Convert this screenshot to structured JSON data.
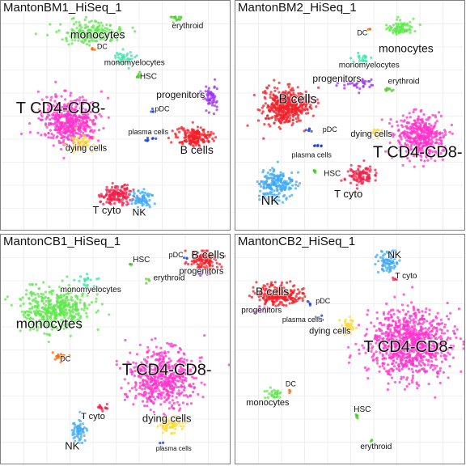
{
  "chart_data": [
    {
      "type": "scatter",
      "title": "MantonBM1_HiSeq_1",
      "clusters": [
        {
          "name": "T CD4-CD8-",
          "color": "#ff33cc",
          "center": [
            0.3,
            0.52
          ],
          "spread": [
            0.11,
            0.09
          ],
          "n": 520,
          "label_at": [
            0.26,
            0.47
          ],
          "label_size": 20
        },
        {
          "name": "dying cells",
          "color": "#ffd92f",
          "center": [
            0.34,
            0.62
          ],
          "spread": [
            0.05,
            0.03
          ],
          "n": 60,
          "label_at": [
            0.37,
            0.64
          ],
          "label_size": 11
        },
        {
          "name": "B cells",
          "color": "#f0202a",
          "center": [
            0.84,
            0.59
          ],
          "spread": [
            0.07,
            0.04
          ],
          "n": 180,
          "label_at": [
            0.85,
            0.65
          ],
          "label_size": 14
        },
        {
          "name": "T cyto",
          "color": "#f0204a",
          "center": [
            0.5,
            0.84
          ],
          "spread": [
            0.06,
            0.04
          ],
          "n": 150,
          "label_at": [
            0.46,
            0.91
          ],
          "label_size": 13
        },
        {
          "name": "NK",
          "color": "#3fa9f5",
          "center": [
            0.61,
            0.86
          ],
          "spread": [
            0.04,
            0.03
          ],
          "n": 70,
          "label_at": [
            0.6,
            0.92
          ],
          "label_size": 12
        },
        {
          "name": "monocytes",
          "color": "#5ee84a",
          "center": [
            0.4,
            0.14
          ],
          "spread": [
            0.12,
            0.04
          ],
          "n": 200,
          "label_at": [
            0.42,
            0.15
          ],
          "label_size": 14
        },
        {
          "name": "erythroid",
          "color": "#55cc33",
          "center": [
            0.76,
            0.07
          ],
          "spread": [
            0.02,
            0.02
          ],
          "n": 18,
          "label_at": [
            0.81,
            0.11
          ],
          "label_size": 10
        },
        {
          "name": "monomyelocytes",
          "color": "#33e8a6",
          "center": [
            0.53,
            0.25
          ],
          "spread": [
            0.04,
            0.03
          ],
          "n": 45,
          "label_at": [
            0.58,
            0.27
          ],
          "label_size": 10
        },
        {
          "name": "DC",
          "color": "#ff6600",
          "center": [
            0.4,
            0.21
          ],
          "spread": [
            0.01,
            0.01
          ],
          "n": 4,
          "label_at": [
            0.44,
            0.2
          ],
          "label_size": 9
        },
        {
          "name": "HSC",
          "color": "#44cc22",
          "center": [
            0.6,
            0.33
          ],
          "spread": [
            0.015,
            0.015
          ],
          "n": 8,
          "label_at": [
            0.64,
            0.33
          ],
          "label_size": 10
        },
        {
          "name": "progenitors",
          "color": "#9933ee",
          "center": [
            0.91,
            0.41
          ],
          "spread": [
            0.03,
            0.05
          ],
          "n": 60,
          "label_at": [
            0.78,
            0.41
          ],
          "label_size": 12
        },
        {
          "name": "pDC",
          "color": "#2244dd",
          "center": [
            0.66,
            0.48
          ],
          "spread": [
            0.01,
            0.01
          ],
          "n": 4,
          "label_at": [
            0.7,
            0.47
          ],
          "label_size": 9
        },
        {
          "name": "plasma cells",
          "color": "#1133cc",
          "center": [
            0.64,
            0.6
          ],
          "spread": [
            0.02,
            0.01
          ],
          "n": 7,
          "label_at": [
            0.64,
            0.57
          ],
          "label_size": 9
        }
      ]
    },
    {
      "type": "scatter",
      "title": "MantonBM2_HiSeq_1",
      "clusters": [
        {
          "name": "T CD4-CD8-",
          "color": "#ff33cc",
          "center": [
            0.8,
            0.59
          ],
          "spread": [
            0.09,
            0.09
          ],
          "n": 420,
          "label_at": [
            0.79,
            0.66
          ],
          "label_size": 20
        },
        {
          "name": "B cells",
          "color": "#f0202a",
          "center": [
            0.22,
            0.46
          ],
          "spread": [
            0.09,
            0.07
          ],
          "n": 420,
          "label_at": [
            0.27,
            0.43
          ],
          "label_size": 16
        },
        {
          "name": "monocytes",
          "color": "#5ee84a",
          "center": [
            0.71,
            0.12
          ],
          "spread": [
            0.05,
            0.03
          ],
          "n": 80,
          "label_at": [
            0.74,
            0.21
          ],
          "label_size": 14
        },
        {
          "name": "monomyelocytes",
          "color": "#33e8a6",
          "center": [
            0.55,
            0.25
          ],
          "spread": [
            0.04,
            0.02
          ],
          "n": 20,
          "label_at": [
            0.58,
            0.28
          ],
          "label_size": 10
        },
        {
          "name": "DC",
          "color": "#ff6600",
          "center": [
            0.58,
            0.12
          ],
          "spread": [
            0.01,
            0.01
          ],
          "n": 3,
          "label_at": [
            0.55,
            0.14
          ],
          "label_size": 9
        },
        {
          "name": "progenitors",
          "color": "#9933ee",
          "center": [
            0.52,
            0.36
          ],
          "spread": [
            0.08,
            0.02
          ],
          "n": 35,
          "label_at": [
            0.44,
            0.34
          ],
          "label_size": 12
        },
        {
          "name": "erythroid",
          "color": "#55cc33",
          "center": [
            0.66,
            0.38
          ],
          "spread": [
            0.03,
            0.01
          ],
          "n": 10,
          "label_at": [
            0.73,
            0.35
          ],
          "label_size": 10
        },
        {
          "name": "pDC",
          "color": "#2244dd",
          "center": [
            0.32,
            0.56
          ],
          "spread": [
            0.015,
            0.01
          ],
          "n": 6,
          "label_at": [
            0.41,
            0.56
          ],
          "label_size": 9
        },
        {
          "name": "dying cells",
          "color": "#ffd92f",
          "center": [
            0.61,
            0.57
          ],
          "spread": [
            0.02,
            0.02
          ],
          "n": 15,
          "label_at": [
            0.59,
            0.58
          ],
          "label_size": 11
        },
        {
          "name": "plasma cells",
          "color": "#1133cc",
          "center": [
            0.36,
            0.63
          ],
          "spread": [
            0.02,
            0.01
          ],
          "n": 6,
          "label_at": [
            0.33,
            0.67
          ],
          "label_size": 9
        },
        {
          "name": "HSC",
          "color": "#44cc22",
          "center": [
            0.34,
            0.74
          ],
          "spread": [
            0.01,
            0.01
          ],
          "n": 5,
          "label_at": [
            0.42,
            0.75
          ],
          "label_size": 10
        },
        {
          "name": "NK",
          "color": "#3fa9f5",
          "center": [
            0.18,
            0.8
          ],
          "spread": [
            0.07,
            0.06
          ],
          "n": 200,
          "label_at": [
            0.15,
            0.87
          ],
          "label_size": 16
        },
        {
          "name": "T cyto",
          "color": "#f0204a",
          "center": [
            0.54,
            0.76
          ],
          "spread": [
            0.05,
            0.04
          ],
          "n": 100,
          "label_at": [
            0.49,
            0.84
          ],
          "label_size": 13
        }
      ]
    },
    {
      "type": "scatter",
      "title": "MantonCB1_HiSeq_1",
      "clusters": [
        {
          "name": "monocytes",
          "color": "#5ee84a",
          "center": [
            0.24,
            0.32
          ],
          "spread": [
            0.14,
            0.08
          ],
          "n": 420,
          "label_at": [
            0.21,
            0.39
          ],
          "label_size": 17
        },
        {
          "name": "monomyelocytes",
          "color": "#33e8a6",
          "center": [
            0.38,
            0.2
          ],
          "spread": [
            0.04,
            0.03
          ],
          "n": 20,
          "label_at": [
            0.39,
            0.24
          ],
          "label_size": 10
        },
        {
          "name": "DC",
          "color": "#ff6600",
          "center": [
            0.26,
            0.53
          ],
          "spread": [
            0.03,
            0.02
          ],
          "n": 15,
          "label_at": [
            0.28,
            0.54
          ],
          "label_size": 9
        },
        {
          "name": "HSC",
          "color": "#44cc22",
          "center": [
            0.56,
            0.13
          ],
          "spread": [
            0.01,
            0.01
          ],
          "n": 4,
          "label_at": [
            0.61,
            0.11
          ],
          "label_size": 10
        },
        {
          "name": "erythroid",
          "color": "#55cc33",
          "center": [
            0.64,
            0.2
          ],
          "spread": [
            0.01,
            0.01
          ],
          "n": 4,
          "label_at": [
            0.73,
            0.19
          ],
          "label_size": 10
        },
        {
          "name": "B cells",
          "color": "#f0202a",
          "center": [
            0.88,
            0.11
          ],
          "spread": [
            0.06,
            0.04
          ],
          "n": 110,
          "label_at": [
            0.91,
            0.09
          ],
          "label_size": 14
        },
        {
          "name": "progenitors",
          "color": "#9933ee",
          "center": [
            0.87,
            0.17
          ],
          "spread": [
            0.02,
            0.01
          ],
          "n": 5,
          "label_at": [
            0.87,
            0.16
          ],
          "label_size": 11
        },
        {
          "name": "pDC",
          "color": "#2244dd",
          "center": [
            0.8,
            0.1
          ],
          "spread": [
            0.01,
            0.01
          ],
          "n": 3,
          "label_at": [
            0.76,
            0.09
          ],
          "label_size": 9
        },
        {
          "name": "T CD4-CD8-",
          "color": "#ff33cc",
          "center": [
            0.7,
            0.62
          ],
          "spread": [
            0.13,
            0.11
          ],
          "n": 560,
          "label_at": [
            0.72,
            0.59
          ],
          "label_size": 20
        },
        {
          "name": "dying cells",
          "color": "#ffd92f",
          "center": [
            0.74,
            0.83
          ],
          "spread": [
            0.05,
            0.03
          ],
          "n": 60,
          "label_at": [
            0.72,
            0.8
          ],
          "label_size": 13
        },
        {
          "name": "plasma cells",
          "color": "#1133cc",
          "center": [
            0.7,
            0.91
          ],
          "spread": [
            0.01,
            0.01
          ],
          "n": 3,
          "label_at": [
            0.75,
            0.93
          ],
          "label_size": 8
        },
        {
          "name": "T cyto",
          "color": "#f0204a",
          "center": [
            0.44,
            0.75
          ],
          "spread": [
            0.02,
            0.02
          ],
          "n": 15,
          "label_at": [
            0.4,
            0.79
          ],
          "label_size": 11
        },
        {
          "name": "NK",
          "color": "#3fa9f5",
          "center": [
            0.34,
            0.85
          ],
          "spread": [
            0.03,
            0.05
          ],
          "n": 60,
          "label_at": [
            0.31,
            0.92
          ],
          "label_size": 13
        }
      ]
    },
    {
      "type": "scatter",
      "title": "MantonCB2_HiSeq_1",
      "clusters": [
        {
          "name": "NK",
          "color": "#3fa9f5",
          "center": [
            0.66,
            0.12
          ],
          "spread": [
            0.04,
            0.05
          ],
          "n": 80,
          "label_at": [
            0.69,
            0.09
          ],
          "label_size": 12
        },
        {
          "name": "T cyto",
          "color": "#f0204a",
          "center": [
            0.69,
            0.19
          ],
          "spread": [
            0.01,
            0.01
          ],
          "n": 5,
          "label_at": [
            0.74,
            0.18
          ],
          "label_size": 10
        },
        {
          "name": "B cells",
          "color": "#f0202a",
          "center": [
            0.18,
            0.26
          ],
          "spread": [
            0.1,
            0.04
          ],
          "n": 240,
          "label_at": [
            0.16,
            0.25
          ],
          "label_size": 14
        },
        {
          "name": "progenitors",
          "color": "#9933ee",
          "center": [
            0.11,
            0.33
          ],
          "spread": [
            0.03,
            0.01
          ],
          "n": 10,
          "label_at": [
            0.1,
            0.33
          ],
          "label_size": 10
        },
        {
          "name": "pDC",
          "color": "#2244dd",
          "center": [
            0.32,
            0.3
          ],
          "spread": [
            0.01,
            0.01
          ],
          "n": 4,
          "label_at": [
            0.38,
            0.29
          ],
          "label_size": 9
        },
        {
          "name": "plasma cells",
          "color": "#1133cc",
          "center": [
            0.36,
            0.36
          ],
          "spread": [
            0.02,
            0.01
          ],
          "n": 5,
          "label_at": [
            0.29,
            0.37
          ],
          "label_size": 9
        },
        {
          "name": "dying cells",
          "color": "#ffd92f",
          "center": [
            0.49,
            0.4
          ],
          "spread": [
            0.03,
            0.03
          ],
          "n": 40,
          "label_at": [
            0.41,
            0.42
          ],
          "label_size": 11
        },
        {
          "name": "T CD4-CD8-",
          "color": "#ff33cc",
          "center": [
            0.76,
            0.47
          ],
          "spread": [
            0.16,
            0.13
          ],
          "n": 900,
          "label_at": [
            0.75,
            0.49
          ],
          "label_size": 20
        },
        {
          "name": "DC",
          "color": "#ff6600",
          "center": [
            0.23,
            0.68
          ],
          "spread": [
            0.01,
            0.01
          ],
          "n": 3,
          "label_at": [
            0.24,
            0.65
          ],
          "label_size": 9
        },
        {
          "name": "monocytes",
          "color": "#5ee84a",
          "center": [
            0.17,
            0.69
          ],
          "spread": [
            0.04,
            0.02
          ],
          "n": 30,
          "label_at": [
            0.14,
            0.73
          ],
          "label_size": 11
        },
        {
          "name": "HSC",
          "color": "#44cc22",
          "center": [
            0.53,
            0.78
          ],
          "spread": [
            0.01,
            0.02
          ],
          "n": 6,
          "label_at": [
            0.55,
            0.76
          ],
          "label_size": 10
        },
        {
          "name": "erythroid",
          "color": "#55cc33",
          "center": [
            0.59,
            0.89
          ],
          "spread": [
            0.01,
            0.01
          ],
          "n": 3,
          "label_at": [
            0.61,
            0.92
          ],
          "label_size": 10
        }
      ]
    }
  ]
}
